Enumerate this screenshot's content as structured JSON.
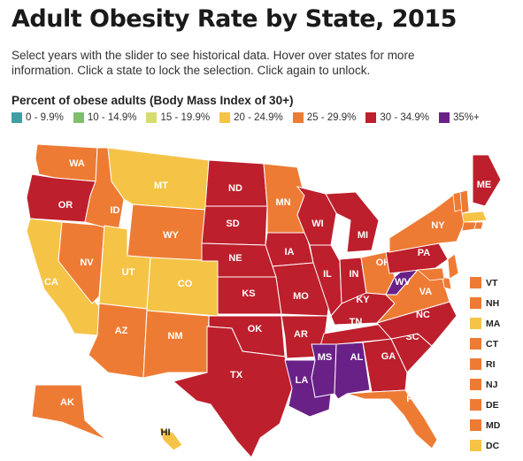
{
  "header": {
    "title": "Adult Obesity Rate by State, 2015",
    "subtitle": "Select years with the slider to see historical data. Hover over states for more information. Click a state to lock the selection. Click again to unlock."
  },
  "legend": {
    "title": "Percent of obese adults (Body Mass Index of 30+)",
    "items": [
      {
        "label": "0 - 9.9%",
        "color": "#3e9fa3"
      },
      {
        "label": "10 - 14.9%",
        "color": "#7fbf6a"
      },
      {
        "label": "15 - 19.9%",
        "color": "#d7dc6f"
      },
      {
        "label": "20 - 24.9%",
        "color": "#f5c447"
      },
      {
        "label": "25 - 29.9%",
        "color": "#ee7b34"
      },
      {
        "label": "30 - 34.9%",
        "color": "#bd1f2c"
      },
      {
        "label": "35%+",
        "color": "#6a2187"
      }
    ]
  },
  "map": {
    "states": [
      {
        "abbr": "WA",
        "bin": 4
      },
      {
        "abbr": "OR",
        "bin": 5
      },
      {
        "abbr": "CA",
        "bin": 3
      },
      {
        "abbr": "NV",
        "bin": 4
      },
      {
        "abbr": "ID",
        "bin": 4
      },
      {
        "abbr": "MT",
        "bin": 3
      },
      {
        "abbr": "WY",
        "bin": 4
      },
      {
        "abbr": "UT",
        "bin": 3
      },
      {
        "abbr": "CO",
        "bin": 3
      },
      {
        "abbr": "AZ",
        "bin": 4
      },
      {
        "abbr": "NM",
        "bin": 4
      },
      {
        "abbr": "ND",
        "bin": 5
      },
      {
        "abbr": "SD",
        "bin": 5
      },
      {
        "abbr": "NE",
        "bin": 5
      },
      {
        "abbr": "KS",
        "bin": 5
      },
      {
        "abbr": "OK",
        "bin": 5
      },
      {
        "abbr": "TX",
        "bin": 5
      },
      {
        "abbr": "MN",
        "bin": 4
      },
      {
        "abbr": "IA",
        "bin": 5
      },
      {
        "abbr": "MO",
        "bin": 5
      },
      {
        "abbr": "AR",
        "bin": 5
      },
      {
        "abbr": "LA",
        "bin": 6
      },
      {
        "abbr": "WI",
        "bin": 5
      },
      {
        "abbr": "IL",
        "bin": 5
      },
      {
        "abbr": "MI",
        "bin": 5
      },
      {
        "abbr": "IN",
        "bin": 5
      },
      {
        "abbr": "OH",
        "bin": 4
      },
      {
        "abbr": "KY",
        "bin": 5
      },
      {
        "abbr": "TN",
        "bin": 5
      },
      {
        "abbr": "MS",
        "bin": 6
      },
      {
        "abbr": "AL",
        "bin": 6
      },
      {
        "abbr": "GA",
        "bin": 5
      },
      {
        "abbr": "FL",
        "bin": 4
      },
      {
        "abbr": "SC",
        "bin": 5
      },
      {
        "abbr": "NC",
        "bin": 5
      },
      {
        "abbr": "VA",
        "bin": 4
      },
      {
        "abbr": "WV",
        "bin": 6
      },
      {
        "abbr": "PA",
        "bin": 5
      },
      {
        "abbr": "NY",
        "bin": 4
      },
      {
        "abbr": "ME",
        "bin": 5
      },
      {
        "abbr": "AK",
        "bin": 4
      },
      {
        "abbr": "HI",
        "bin": 3
      }
    ],
    "small_states": [
      {
        "abbr": "VT",
        "bin": 4
      },
      {
        "abbr": "NH",
        "bin": 4
      },
      {
        "abbr": "MA",
        "bin": 3
      },
      {
        "abbr": "CT",
        "bin": 4
      },
      {
        "abbr": "RI",
        "bin": 4
      },
      {
        "abbr": "NJ",
        "bin": 4
      },
      {
        "abbr": "DE",
        "bin": 4
      },
      {
        "abbr": "MD",
        "bin": 4
      },
      {
        "abbr": "DC",
        "bin": 3
      }
    ]
  }
}
